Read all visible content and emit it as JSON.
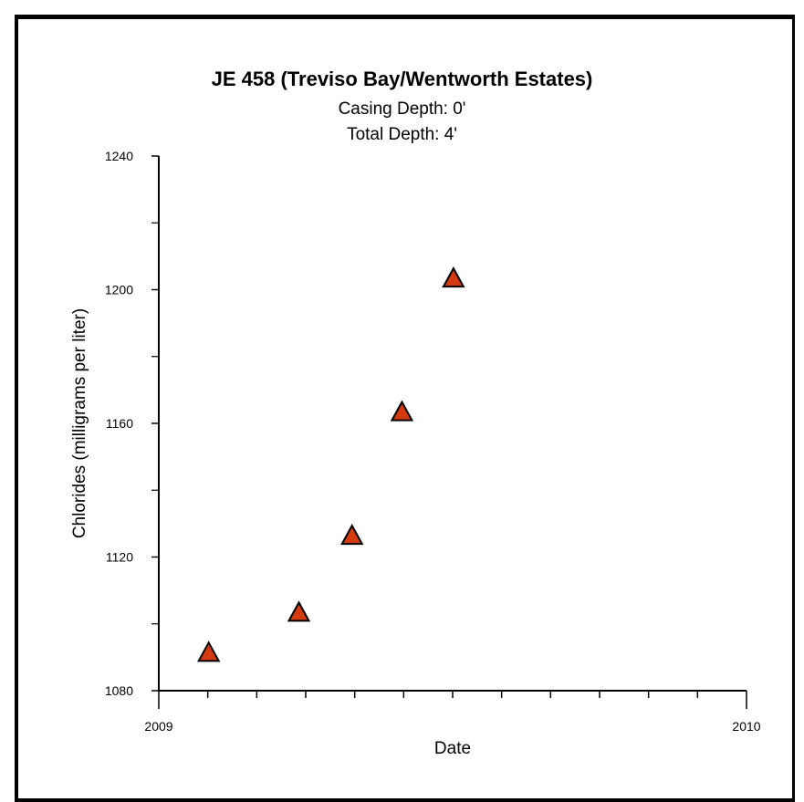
{
  "chart_data": {
    "type": "scatter",
    "title": "JE 458 (Treviso Bay/Wentworth Estates)",
    "subtitle_lines": [
      "Casing Depth:  0'",
      "Total Depth:  4'"
    ],
    "xlabel": "Date",
    "ylabel": "Chlorides (milligrams per liter)",
    "xlim": [
      "2009-01-01",
      "2010-01-01"
    ],
    "ylim": [
      1080,
      1240
    ],
    "x_tick_labels": [
      "2009",
      "2010"
    ],
    "y_tick_labels": [
      "1080",
      "1120",
      "1160",
      "1200",
      "1240"
    ],
    "y_tick_values": [
      1080,
      1120,
      1160,
      1200,
      1240
    ],
    "y_minor_tick_values": [
      1100,
      1140,
      1180,
      1220
    ],
    "x_minor_tick_count": 12,
    "marker": "triangle",
    "marker_color": "#d33a10",
    "series": [
      {
        "points": [
          {
            "x": "2009-02-01",
            "y": 1091
          },
          {
            "x": "2009-03-29",
            "y": 1103
          },
          {
            "x": "2009-05-01",
            "y": 1126
          },
          {
            "x": "2009-06-01",
            "y": 1163
          },
          {
            "x": "2009-07-03",
            "y": 1203
          }
        ]
      }
    ],
    "grid": false,
    "legend": "none"
  }
}
